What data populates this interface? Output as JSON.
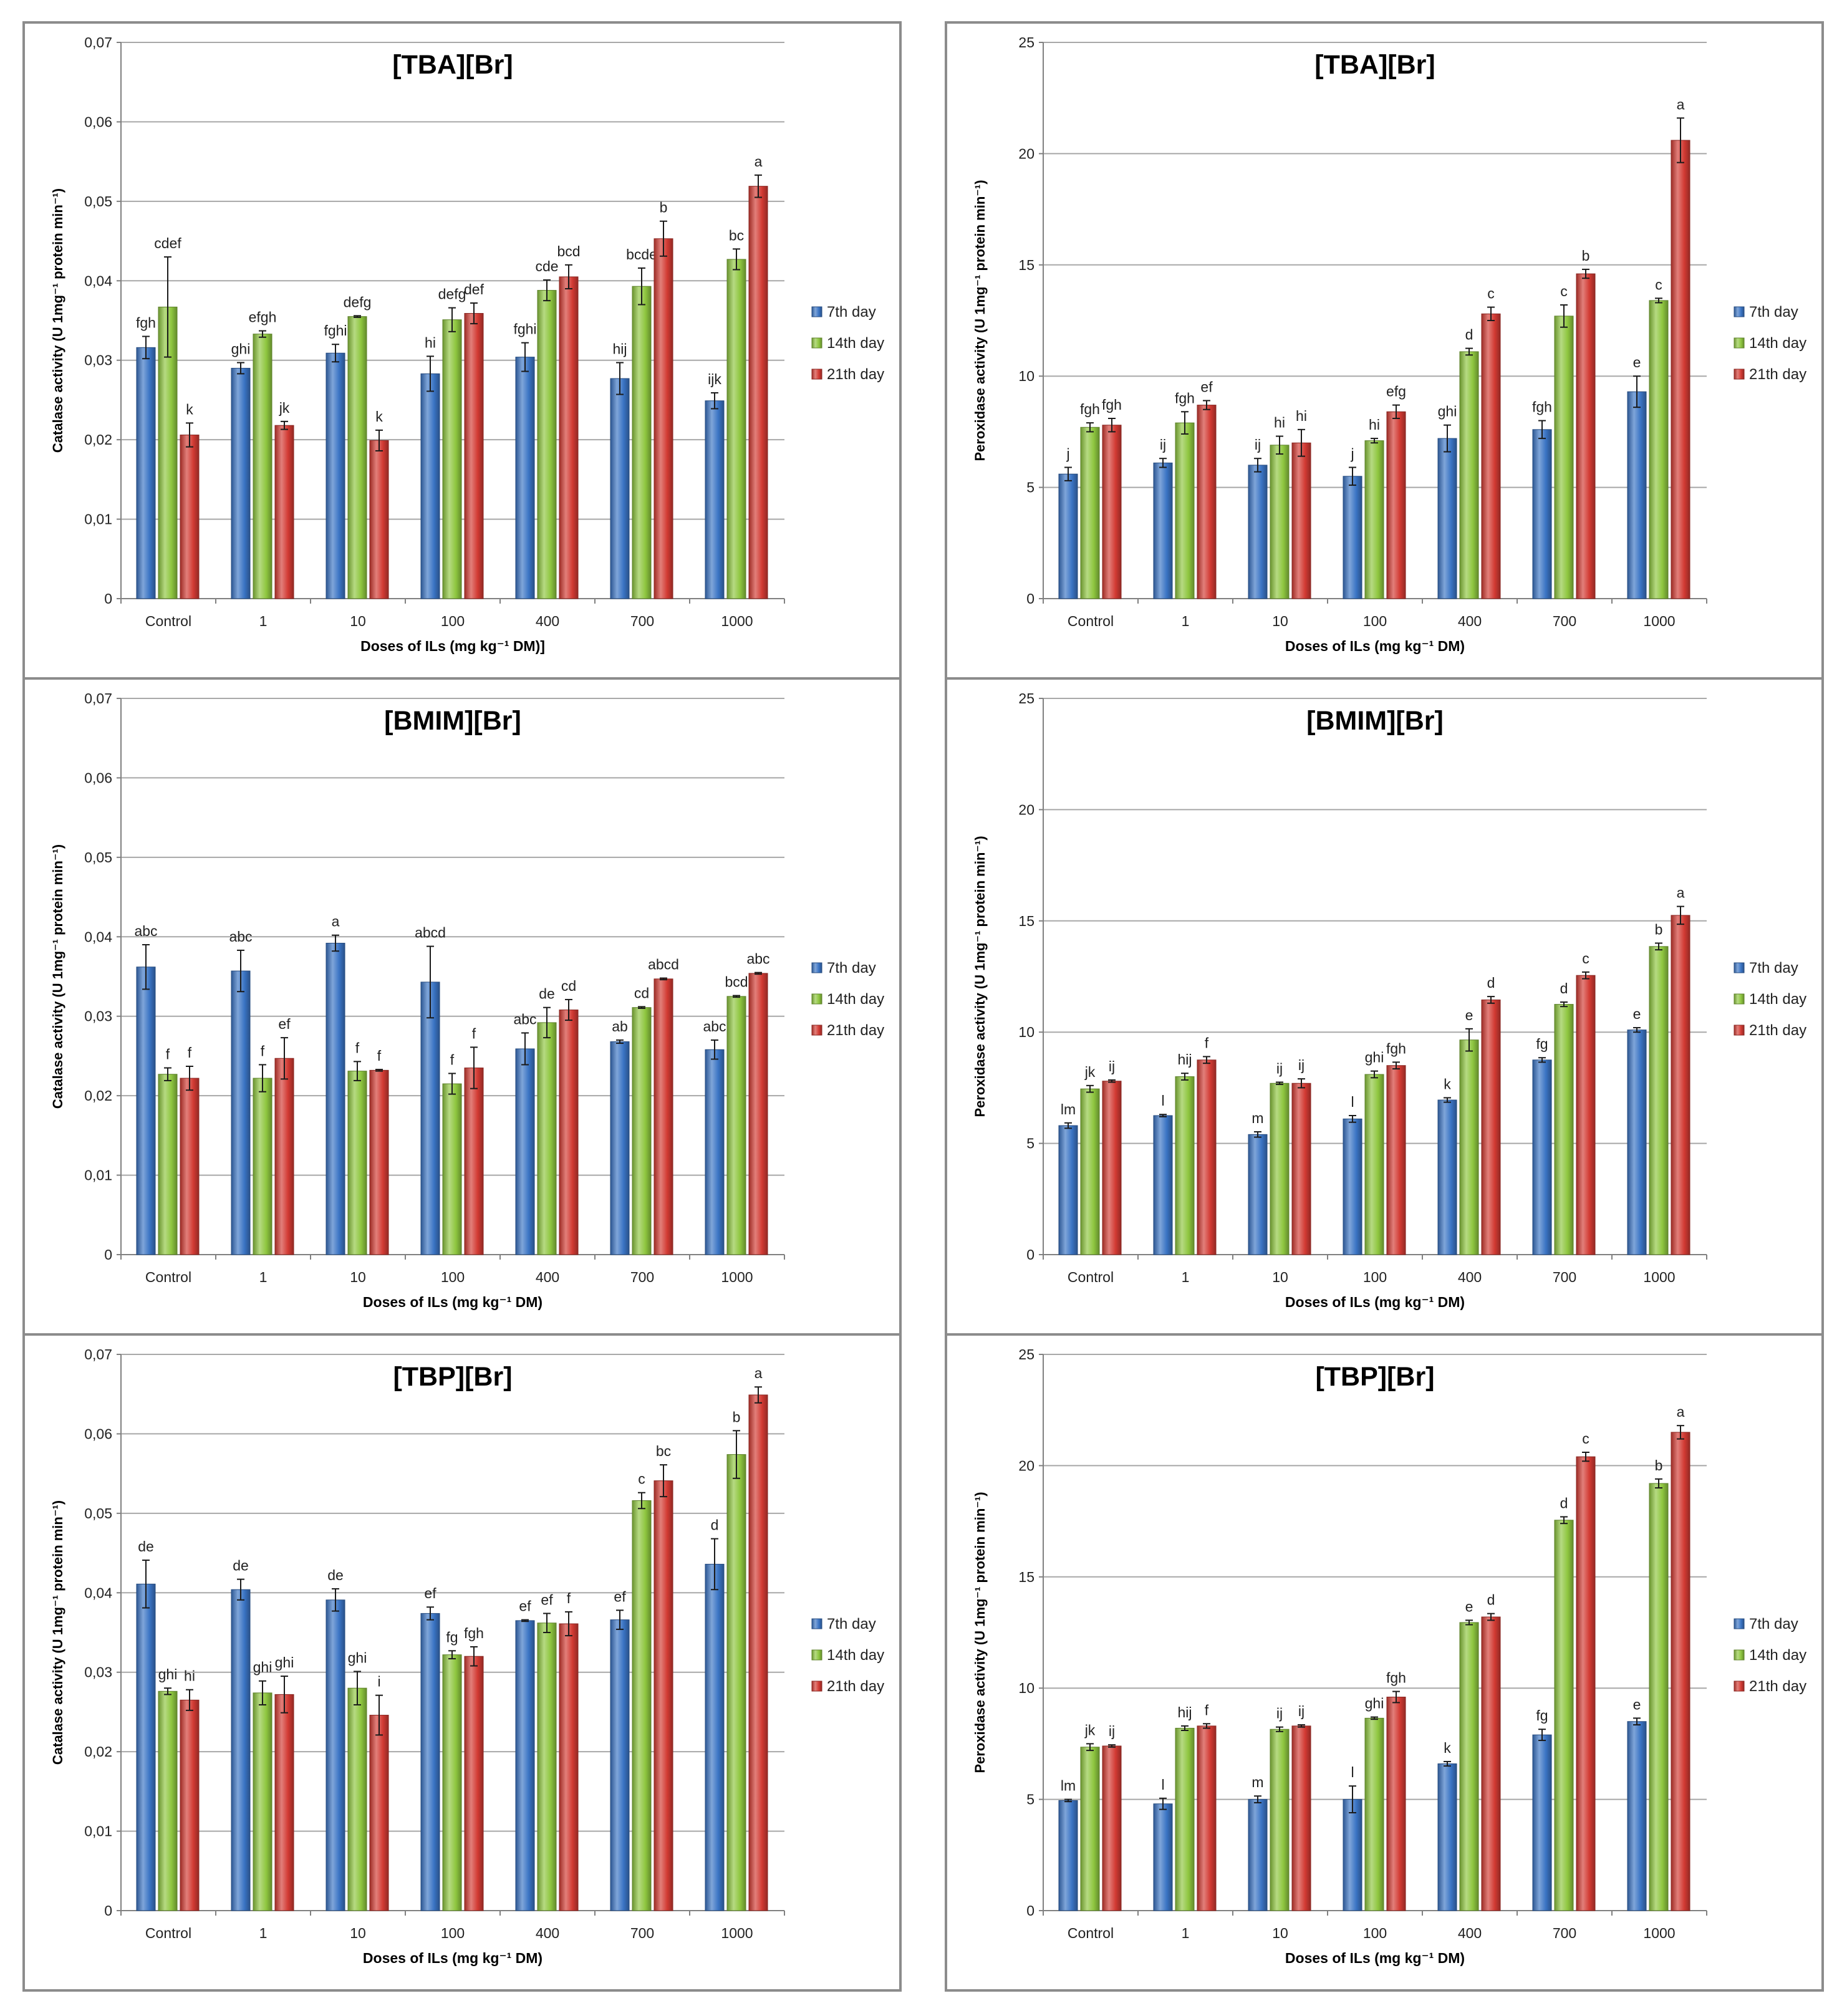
{
  "colors": {
    "7th day": "#3a74c4",
    "14th day": "#8ec63f",
    "21th day": "#d23a33"
  },
  "chart_data": [
    {
      "type": "bar",
      "title": "[TBA][Br]",
      "ylabel": "Catalase activity  (U 1mg⁻¹ protein min⁻¹)",
      "xlabel": "Doses of ILs (mg kg⁻¹ DM)]",
      "ylim": [
        0,
        0.07
      ],
      "yticks": [
        0,
        0.01,
        0.02,
        0.03,
        0.04,
        0.05,
        0.06,
        0.07
      ],
      "yticklabels": [
        "0",
        "0,01",
        "0,02",
        "0,03",
        "0,04",
        "0,05",
        "0,06",
        "0,07"
      ],
      "categories": [
        "Control",
        "1",
        "10",
        "100",
        "400",
        "700",
        "1000"
      ],
      "legend": [
        "7th day",
        "14th day",
        "21th day"
      ],
      "series": [
        {
          "name": "7th day",
          "values": [
            0.0316,
            0.029,
            0.0309,
            0.0283,
            0.0304,
            0.0277,
            0.0249
          ],
          "errors": [
            0.0014,
            0.0007,
            0.0011,
            0.0022,
            0.0018,
            0.002,
            0.001
          ],
          "labels": [
            "fgh",
            "ghi",
            "fghi",
            "hi",
            "fghi",
            "hij",
            "ijk"
          ]
        },
        {
          "name": "14th day",
          "values": [
            0.0367,
            0.0333,
            0.0355,
            0.0351,
            0.0388,
            0.0393,
            0.0427
          ],
          "errors": [
            0.0063,
            0.0004,
            0.0001,
            0.0015,
            0.0013,
            0.0023,
            0.0013
          ],
          "labels": [
            "cdef",
            "efgh",
            "defg",
            "defg",
            "cde",
            "bcde",
            "bc"
          ]
        },
        {
          "name": "21th day",
          "values": [
            0.0206,
            0.0218,
            0.0199,
            0.0359,
            0.0405,
            0.0453,
            0.0519
          ],
          "errors": [
            0.0015,
            0.0005,
            0.0013,
            0.0013,
            0.0015,
            0.0022,
            0.0014
          ],
          "labels": [
            "k",
            "jk",
            "k",
            "def",
            "bcd",
            "b",
            "a"
          ]
        }
      ]
    },
    {
      "type": "bar",
      "title": "[TBA][Br]",
      "ylabel": "Peroxidase activity  (U 1mg⁻¹ protein min⁻¹)",
      "xlabel": "Doses of ILs (mg kg⁻¹ DM)",
      "ylim": [
        0,
        25
      ],
      "yticks": [
        0,
        5,
        10,
        15,
        20,
        25
      ],
      "yticklabels": [
        "0",
        "5",
        "10",
        "15",
        "20",
        "25"
      ],
      "categories": [
        "Control",
        "1",
        "10",
        "100",
        "400",
        "700",
        "1000"
      ],
      "legend": [
        "7th day",
        "14th day",
        "21th day"
      ],
      "series": [
        {
          "name": "7th day",
          "values": [
            5.6,
            6.1,
            6.0,
            5.5,
            7.2,
            7.6,
            9.3
          ],
          "errors": [
            0.3,
            0.2,
            0.3,
            0.4,
            0.6,
            0.4,
            0.7
          ],
          "labels": [
            "j",
            "ij",
            "ij",
            "j",
            "ghi",
            "fgh",
            "e"
          ]
        },
        {
          "name": "14th day",
          "values": [
            7.7,
            7.9,
            6.9,
            7.1,
            11.1,
            12.7,
            13.4
          ],
          "errors": [
            0.2,
            0.5,
            0.4,
            0.1,
            0.15,
            0.5,
            0.1
          ],
          "labels": [
            "fgh",
            "fgh",
            "hi",
            "hi",
            "d",
            "c",
            "c"
          ]
        },
        {
          "name": "21th day",
          "values": [
            7.8,
            8.7,
            7.0,
            8.4,
            12.8,
            14.6,
            20.6
          ],
          "errors": [
            0.3,
            0.2,
            0.6,
            0.3,
            0.3,
            0.2,
            1.0
          ],
          "labels": [
            "fgh",
            "ef",
            "hi",
            "efg",
            "c",
            "b",
            "a"
          ]
        }
      ]
    },
    {
      "type": "bar",
      "title": "[BMIM][Br]",
      "ylabel": "Catalase activity  (U 1mg⁻¹ protein min⁻¹)",
      "xlabel": "Doses of ILs (mg kg⁻¹ DM)",
      "ylim": [
        0,
        0.07
      ],
      "yticks": [
        0,
        0.01,
        0.02,
        0.03,
        0.04,
        0.05,
        0.06,
        0.07
      ],
      "yticklabels": [
        "0",
        "0,01",
        "0,02",
        "0,03",
        "0,04",
        "0,05",
        "0,06",
        "0,07"
      ],
      "categories": [
        "Control",
        "1",
        "10",
        "100",
        "400",
        "700",
        "1000"
      ],
      "legend": [
        "7th day",
        "14th day",
        "21th day"
      ],
      "series": [
        {
          "name": "7th day",
          "values": [
            0.0362,
            0.0357,
            0.0392,
            0.0343,
            0.0259,
            0.0268,
            0.0258
          ],
          "errors": [
            0.0028,
            0.0026,
            0.001,
            0.0045,
            0.002,
            0.0002,
            0.0012
          ],
          "labels": [
            "abc",
            "abc",
            "a",
            "abcd",
            "abc",
            "ab",
            "abc"
          ]
        },
        {
          "name": "14th day",
          "values": [
            0.0227,
            0.0222,
            0.0231,
            0.0215,
            0.0292,
            0.0311,
            0.0325
          ],
          "errors": [
            0.0008,
            0.0017,
            0.0012,
            0.0013,
            0.0019,
            0.0001,
            0.0001
          ],
          "labels": [
            "f",
            "f",
            "f",
            "f",
            "de",
            "cd",
            "bcd"
          ]
        },
        {
          "name": "21th day",
          "values": [
            0.0222,
            0.0247,
            0.0232,
            0.0235,
            0.0308,
            0.0347,
            0.0354
          ],
          "errors": [
            0.0015,
            0.0026,
            0.0001,
            0.0026,
            0.0013,
            0.0001,
            0.0001
          ],
          "labels": [
            "f",
            "ef",
            "f",
            "f",
            "cd",
            "abcd",
            "abc"
          ]
        }
      ]
    },
    {
      "type": "bar",
      "title": "[BMIM][Br]",
      "ylabel": "Peroxidase activity  (U 1mg⁻¹ protein min⁻¹)",
      "xlabel": "Doses of ILs (mg kg⁻¹ DM)",
      "ylim": [
        0,
        25
      ],
      "yticks": [
        0,
        5,
        10,
        15,
        20,
        25
      ],
      "yticklabels": [
        "0",
        "5",
        "10",
        "15",
        "20",
        "25"
      ],
      "categories": [
        "Control",
        "1",
        "10",
        "100",
        "400",
        "700",
        "1000"
      ],
      "legend": [
        "7th day",
        "14th day",
        "21th day"
      ],
      "series": [
        {
          "name": "7th day",
          "values": [
            5.8,
            6.25,
            5.4,
            6.1,
            6.95,
            8.75,
            10.1
          ],
          "errors": [
            0.12,
            0.05,
            0.12,
            0.15,
            0.1,
            0.1,
            0.1
          ],
          "labels": [
            "lm",
            "l",
            "m",
            "l",
            "k",
            "fg",
            "e"
          ]
        },
        {
          "name": "14th day",
          "values": [
            7.45,
            8.0,
            7.7,
            8.1,
            9.65,
            11.25,
            13.85
          ],
          "errors": [
            0.15,
            0.15,
            0.05,
            0.15,
            0.5,
            0.1,
            0.15
          ],
          "labels": [
            "jk",
            "hij",
            "ij",
            "ghi",
            "e",
            "d",
            "b"
          ]
        },
        {
          "name": "21th day",
          "values": [
            7.8,
            8.75,
            7.7,
            8.5,
            11.45,
            12.55,
            15.25
          ],
          "errors": [
            0.05,
            0.15,
            0.2,
            0.15,
            0.15,
            0.15,
            0.4
          ],
          "labels": [
            "ij",
            "f",
            "ij",
            "fgh",
            "d",
            "c",
            "a"
          ]
        }
      ]
    },
    {
      "type": "bar",
      "title": "[TBP][Br]",
      "ylabel": "Catalase activity  (U 1mg⁻¹ protein min⁻¹)",
      "xlabel": "Doses of ILs (mg kg⁻¹ DM)",
      "ylim": [
        0,
        0.07
      ],
      "yticks": [
        0,
        0.01,
        0.02,
        0.03,
        0.04,
        0.05,
        0.06,
        0.07
      ],
      "yticklabels": [
        "0",
        "0,01",
        "0,02",
        "0,03",
        "0,04",
        "0,05",
        "0,06",
        "0,07"
      ],
      "categories": [
        "Control",
        "1",
        "10",
        "100",
        "400",
        "700",
        "1000"
      ],
      "legend": [
        "7th day",
        "14th day",
        "21th day"
      ],
      "series": [
        {
          "name": "7th day",
          "values": [
            0.0411,
            0.0404,
            0.0391,
            0.0374,
            0.0365,
            0.0366,
            0.0436
          ],
          "errors": [
            0.003,
            0.0013,
            0.0014,
            0.0008,
            0.0001,
            0.0012,
            0.0032
          ],
          "labels": [
            "de",
            "de",
            "de",
            "ef",
            "ef",
            "ef",
            "d"
          ]
        },
        {
          "name": "14th day",
          "values": [
            0.0276,
            0.0274,
            0.028,
            0.0322,
            0.0362,
            0.0516,
            0.0574
          ],
          "errors": [
            0.0004,
            0.0015,
            0.0021,
            0.0005,
            0.0012,
            0.001,
            0.003
          ],
          "labels": [
            "ghi",
            "ghi",
            "ghi",
            "fg",
            "ef",
            "c",
            "b"
          ]
        },
        {
          "name": "21th day",
          "values": [
            0.0265,
            0.0272,
            0.0246,
            0.032,
            0.0361,
            0.0541,
            0.0649
          ],
          "errors": [
            0.0013,
            0.0023,
            0.0025,
            0.0012,
            0.0015,
            0.002,
            0.001
          ],
          "labels": [
            "hi",
            "ghi",
            "i",
            "fgh",
            "f",
            "bc",
            "a"
          ]
        }
      ]
    },
    {
      "type": "bar",
      "title": "[TBP][Br]",
      "ylabel": "Peroxidase activity  (U 1mg⁻¹ protein min⁻¹)",
      "xlabel": "Doses of ILs (mg kg⁻¹ DM)",
      "ylim": [
        0,
        25
      ],
      "yticks": [
        0,
        5,
        10,
        15,
        20,
        25
      ],
      "yticklabels": [
        "0",
        "5",
        "10",
        "15",
        "20",
        "25"
      ],
      "categories": [
        "Control",
        "1",
        "10",
        "100",
        "400",
        "700",
        "1000"
      ],
      "legend": [
        "7th day",
        "14th day",
        "21th day"
      ],
      "series": [
        {
          "name": "7th day",
          "values": [
            4.95,
            4.8,
            5.0,
            5.0,
            6.6,
            7.9,
            8.5
          ],
          "errors": [
            0.05,
            0.25,
            0.15,
            0.6,
            0.1,
            0.25,
            0.15
          ],
          "labels": [
            "lm",
            "l",
            "m",
            "l",
            "k",
            "fg",
            "e"
          ]
        },
        {
          "name": "14th day",
          "values": [
            7.35,
            8.2,
            8.15,
            8.65,
            12.95,
            17.55,
            19.2
          ],
          "errors": [
            0.15,
            0.1,
            0.1,
            0.05,
            0.1,
            0.15,
            0.2
          ],
          "labels": [
            "jk",
            "hij",
            "ij",
            "ghi",
            "e",
            "d",
            "b"
          ]
        },
        {
          "name": "21th day",
          "values": [
            7.4,
            8.3,
            8.3,
            9.6,
            13.2,
            20.4,
            21.5
          ],
          "errors": [
            0.05,
            0.1,
            0.05,
            0.25,
            0.15,
            0.2,
            0.3
          ],
          "labels": [
            "ij",
            "f",
            "ij",
            "fgh",
            "d",
            "c",
            "a"
          ]
        }
      ]
    }
  ]
}
